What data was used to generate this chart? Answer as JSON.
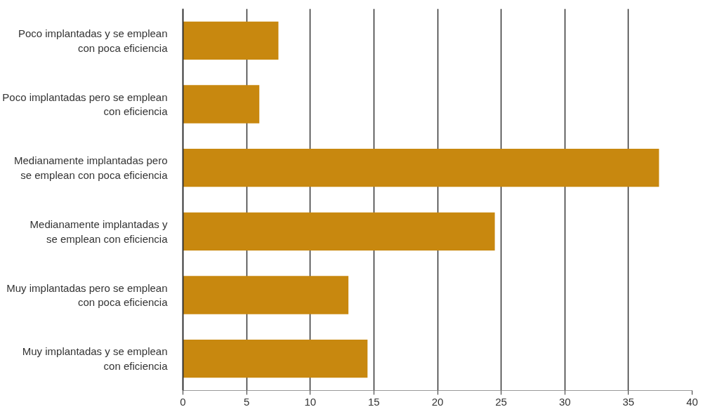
{
  "chart_data": {
    "type": "bar",
    "orientation": "horizontal",
    "categories": [
      "Poco implantadas y se emplean\ncon poca eficiencia",
      "Poco implantadas pero se emplean\ncon eficiencia",
      "Medianamente implantadas pero\nse emplean con poca eficiencia",
      "Medianamente implantadas y\nse emplean con eficiencia",
      "Muy implantadas pero se emplean\ncon poca eficiencia",
      "Muy implantadas y se emplean\ncon eficiencia"
    ],
    "values": [
      7.5,
      6.0,
      37.4,
      24.5,
      13.0,
      14.5
    ],
    "color": "#c8880f",
    "xlim": [
      0,
      40
    ],
    "xticks": [
      0,
      5,
      10,
      15,
      20,
      25,
      30,
      35,
      40
    ],
    "grid": "x"
  }
}
